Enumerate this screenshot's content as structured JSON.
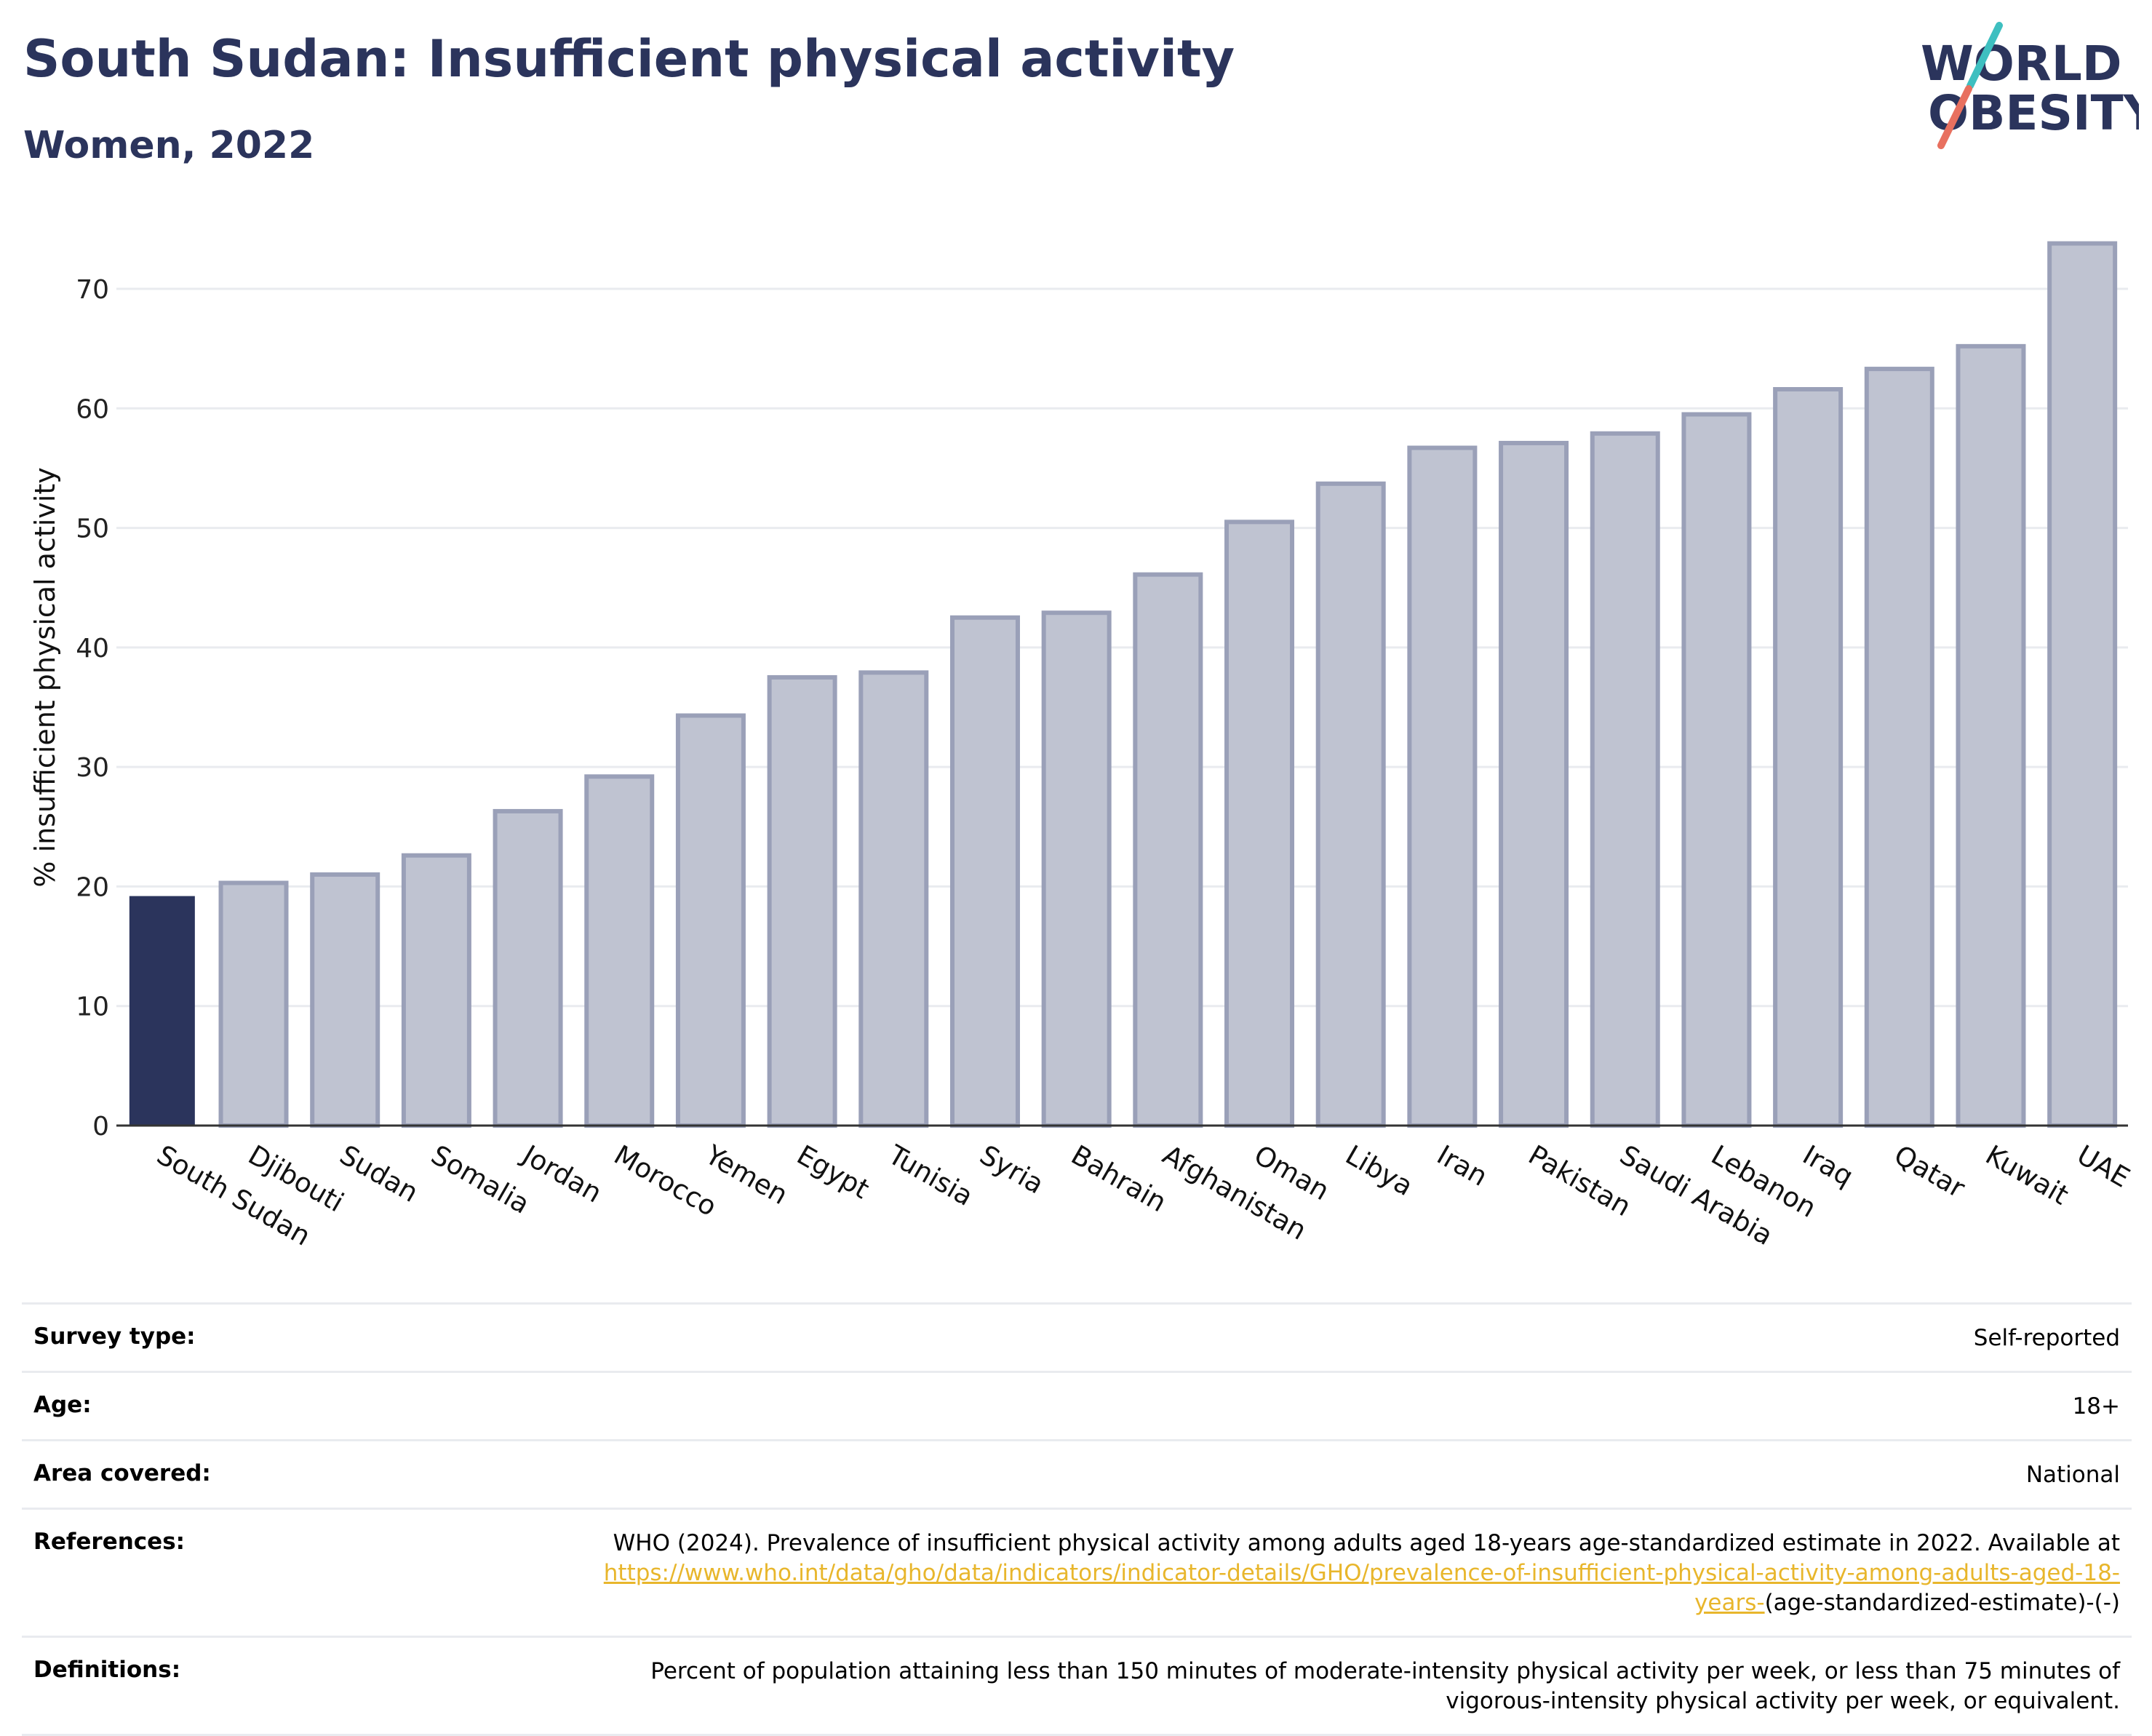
{
  "header": {
    "title": "South Sudan: Insufficient physical activity",
    "subtitle": "Women, 2022"
  },
  "logo": {
    "line1": "WORLD",
    "line2": "OBESITY"
  },
  "colors": {
    "highlight": "#2b345c",
    "bar_fill": "#bfc3d1",
    "bar_stroke": "#9aa0b8",
    "grid": "#e9ebef",
    "title": "#2b345c",
    "link": "#e8b62c",
    "logo_teal": "#3ebfc0",
    "logo_coral": "#e8705f"
  },
  "chart_data": {
    "type": "bar",
    "ylabel": "% insufficient physical activity",
    "xlabel": "",
    "ylim": [
      0,
      75
    ],
    "yticks": [
      0,
      10,
      20,
      30,
      40,
      50,
      60,
      70
    ],
    "grid": true,
    "highlight": "South Sudan",
    "categories": [
      "South Sudan",
      "Djibouti",
      "Sudan",
      "Somalia",
      "Jordan",
      "Morocco",
      "Yemen",
      "Egypt",
      "Tunisia",
      "Syria",
      "Bahrain",
      "Afghanistan",
      "Oman",
      "Libya",
      "Iran",
      "Pakistan",
      "Saudi Arabia",
      "Lebanon",
      "Iraq",
      "Qatar",
      "Kuwait",
      "UAE"
    ],
    "values": [
      19.2,
      20.3,
      21.0,
      22.6,
      26.3,
      29.2,
      34.3,
      37.5,
      37.9,
      42.5,
      42.9,
      46.1,
      50.5,
      53.7,
      56.7,
      57.1,
      57.9,
      59.5,
      61.6,
      63.3,
      65.2,
      73.8
    ]
  },
  "info": {
    "survey_type_label": "Survey type:",
    "survey_type_value": "Self-reported",
    "age_label": "Age:",
    "age_value": "18+",
    "area_label": "Area covered:",
    "area_value": "National",
    "references_label": "References:",
    "references_text": "WHO (2024). Prevalence of insufficient physical activity among adults aged 18-years age-standardized estimate in 2022. Available at",
    "references_link": "https://www.who.int/data/gho/data/indicators/indicator-details/GHO/prevalence-of-insufficient-physical-activity-among-adults-aged-18-years-",
    "references_suffix": "(age-standardized-estimate)-(-)",
    "definitions_label": "Definitions:",
    "definitions_value": "Percent of population attaining less than 150 minutes of moderate-intensity physical activity per week, or less than 75 minutes of vigorous-intensity physical activity per week, or equivalent."
  }
}
